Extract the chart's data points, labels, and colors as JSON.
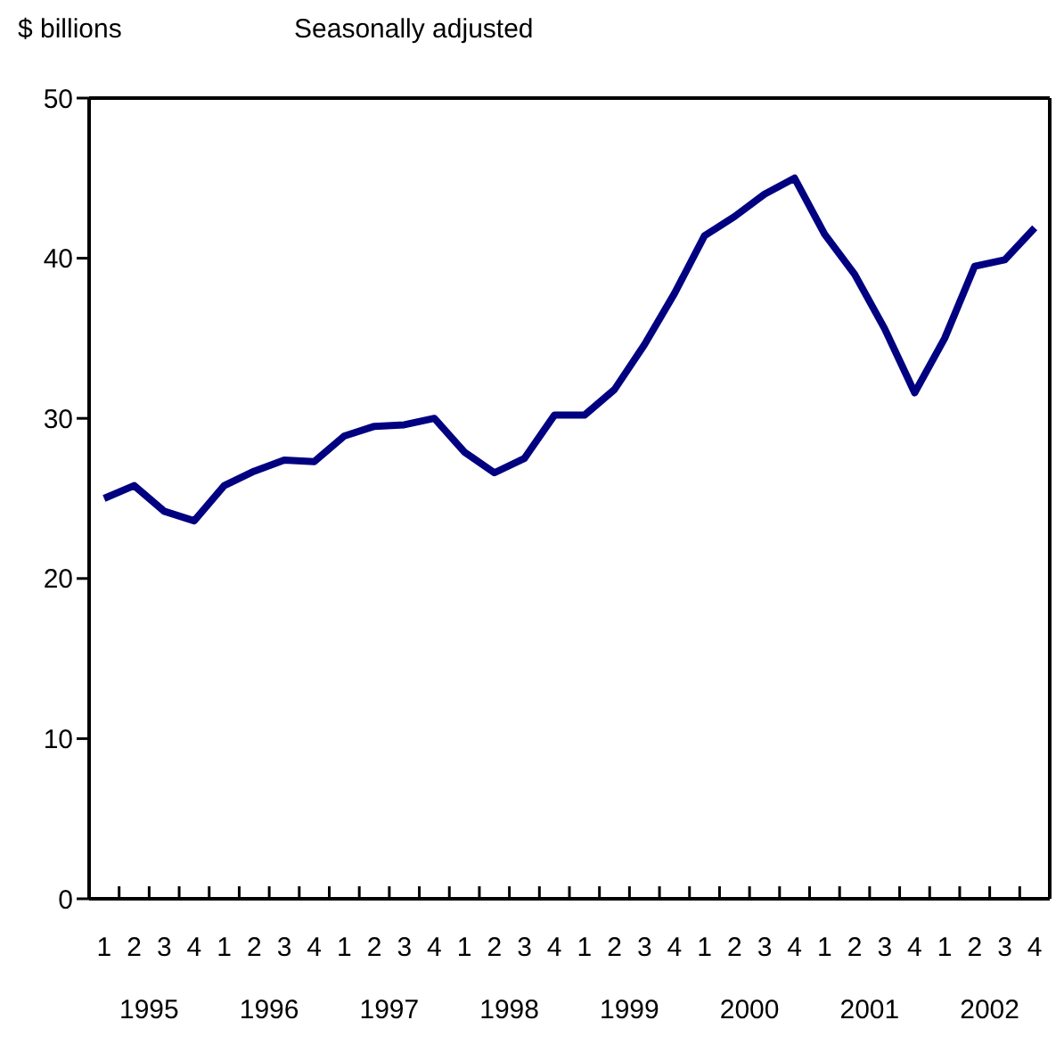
{
  "chart_data": {
    "type": "line",
    "ylabel": "$ billions",
    "subtitle": "Seasonally adjusted",
    "categories": [
      "1",
      "2",
      "3",
      "4",
      "1",
      "2",
      "3",
      "4",
      "1",
      "2",
      "3",
      "4",
      "1",
      "2",
      "3",
      "4",
      "1",
      "2",
      "3",
      "4",
      "1",
      "2",
      "3",
      "4",
      "1",
      "2",
      "3",
      "4",
      "1",
      "2",
      "3",
      "4"
    ],
    "annotations": [
      "1995",
      "1996",
      "1997",
      "1998",
      "1999",
      "2000",
      "2001",
      "2002"
    ],
    "series": [
      {
        "color": "#000080",
        "values": [
          25.0,
          25.8,
          24.2,
          23.6,
          25.8,
          26.7,
          27.4,
          27.3,
          28.9,
          29.5,
          29.6,
          30.0,
          27.9,
          26.6,
          27.5,
          30.2,
          30.2,
          31.8,
          34.6,
          37.8,
          41.4,
          42.6,
          44.0,
          45.0,
          41.5,
          39.0,
          35.6,
          31.6,
          35.0,
          39.5,
          39.9,
          41.9
        ]
      }
    ],
    "ylim": [
      0,
      50
    ],
    "yticks": [
      0,
      10,
      20,
      30,
      40,
      50
    ],
    "marker": "none",
    "line_style": "solid"
  }
}
